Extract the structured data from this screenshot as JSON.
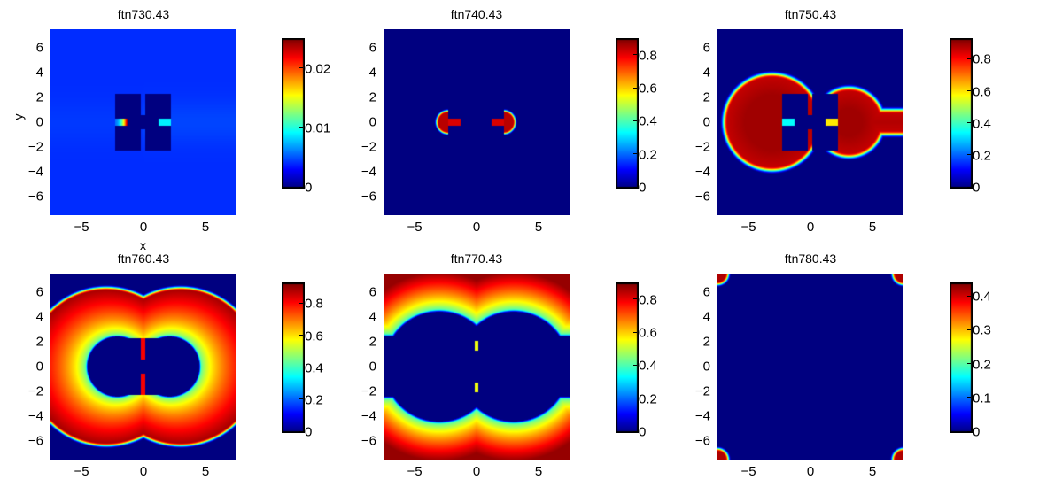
{
  "figure": {
    "colormap": "jet"
  },
  "chart_data": [
    {
      "type": "heatmap",
      "title": "ftn730.43",
      "xlabel": "x",
      "ylabel": "y",
      "xlim": [
        -7.5,
        7.5
      ],
      "ylim": [
        -7.5,
        7.5
      ],
      "xticks": [
        "−5",
        "0",
        "5"
      ],
      "xtick_values": [
        -5,
        0,
        5
      ],
      "yticks": [
        "6",
        "4",
        "2",
        "0",
        "−2",
        "−4",
        "−6"
      ],
      "ytick_values": [
        6,
        4,
        2,
        0,
        -2,
        -4,
        -6
      ],
      "clim": [
        0,
        0.025
      ],
      "colorbar_ticks": [
        "0",
        "0.01",
        "0.02"
      ],
      "colorbar_tick_values": [
        0,
        0.01,
        0.02
      ]
    },
    {
      "type": "heatmap",
      "title": "ftn740.43",
      "xlabel": "",
      "ylabel": "",
      "xlim": [
        -7.5,
        7.5
      ],
      "ylim": [
        -7.5,
        7.5
      ],
      "xticks": [
        "−5",
        "0",
        "5"
      ],
      "xtick_values": [
        -5,
        0,
        5
      ],
      "yticks": [
        "6",
        "4",
        "2",
        "0",
        "−2",
        "−4",
        "−6"
      ],
      "ytick_values": [
        6,
        4,
        2,
        0,
        -2,
        -4,
        -6
      ],
      "clim": [
        0,
        0.9
      ],
      "colorbar_ticks": [
        "0",
        "0.2",
        "0.4",
        "0.6",
        "0.8"
      ],
      "colorbar_tick_values": [
        0,
        0.2,
        0.4,
        0.6,
        0.8
      ]
    },
    {
      "type": "heatmap",
      "title": "ftn750.43",
      "xlabel": "",
      "ylabel": "",
      "xlim": [
        -7.5,
        7.5
      ],
      "ylim": [
        -7.5,
        7.5
      ],
      "xticks": [
        "−5",
        "0",
        "5"
      ],
      "xtick_values": [
        -5,
        0,
        5
      ],
      "yticks": [
        "6",
        "4",
        "2",
        "0",
        "−2",
        "−4",
        "−6"
      ],
      "ytick_values": [
        6,
        4,
        2,
        0,
        -2,
        -4,
        -6
      ],
      "clim": [
        0,
        0.93
      ],
      "colorbar_ticks": [
        "0",
        "0.2",
        "0.4",
        "0.6",
        "0.8"
      ],
      "colorbar_tick_values": [
        0,
        0.2,
        0.4,
        0.6,
        0.8
      ]
    },
    {
      "type": "heatmap",
      "title": "ftn760.43",
      "xlabel": "",
      "ylabel": "",
      "xlim": [
        -7.5,
        7.5
      ],
      "ylim": [
        -7.5,
        7.5
      ],
      "xticks": [
        "−5",
        "0",
        "5"
      ],
      "xtick_values": [
        -5,
        0,
        5
      ],
      "yticks": [
        "6",
        "4",
        "2",
        "0",
        "−2",
        "−4",
        "−6"
      ],
      "ytick_values": [
        6,
        4,
        2,
        0,
        -2,
        -4,
        -6
      ],
      "clim": [
        0,
        0.93
      ],
      "colorbar_ticks": [
        "0",
        "0.2",
        "0.4",
        "0.6",
        "0.8"
      ],
      "colorbar_tick_values": [
        0,
        0.2,
        0.4,
        0.6,
        0.8
      ]
    },
    {
      "type": "heatmap",
      "title": "ftn770.43",
      "xlabel": "",
      "ylabel": "",
      "xlim": [
        -7.5,
        7.5
      ],
      "ylim": [
        -7.5,
        7.5
      ],
      "xticks": [
        "−5",
        "0",
        "5"
      ],
      "xtick_values": [
        -5,
        0,
        5
      ],
      "yticks": [
        "6",
        "4",
        "2",
        "0",
        "−2",
        "−4",
        "−6"
      ],
      "ytick_values": [
        6,
        4,
        2,
        0,
        -2,
        -4,
        -6
      ],
      "clim": [
        0,
        0.9
      ],
      "colorbar_ticks": [
        "0",
        "0.2",
        "0.4",
        "0.6",
        "0.8"
      ],
      "colorbar_tick_values": [
        0,
        0.2,
        0.4,
        0.6,
        0.8
      ]
    },
    {
      "type": "heatmap",
      "title": "ftn780.43",
      "xlabel": "",
      "ylabel": "",
      "xlim": [
        -7.5,
        7.5
      ],
      "ylim": [
        -7.5,
        7.5
      ],
      "xticks": [
        "−5",
        "0",
        "5"
      ],
      "xtick_values": [
        -5,
        0,
        5
      ],
      "yticks": [
        "6",
        "4",
        "2",
        "0",
        "−2",
        "−4",
        "−6"
      ],
      "ytick_values": [
        6,
        4,
        2,
        0,
        -2,
        -4,
        -6
      ],
      "clim": [
        0,
        0.44
      ],
      "colorbar_ticks": [
        "0",
        "0.1",
        "0.2",
        "0.3",
        "0.4"
      ],
      "colorbar_tick_values": [
        0,
        0.1,
        0.2,
        0.3,
        0.4
      ]
    }
  ]
}
